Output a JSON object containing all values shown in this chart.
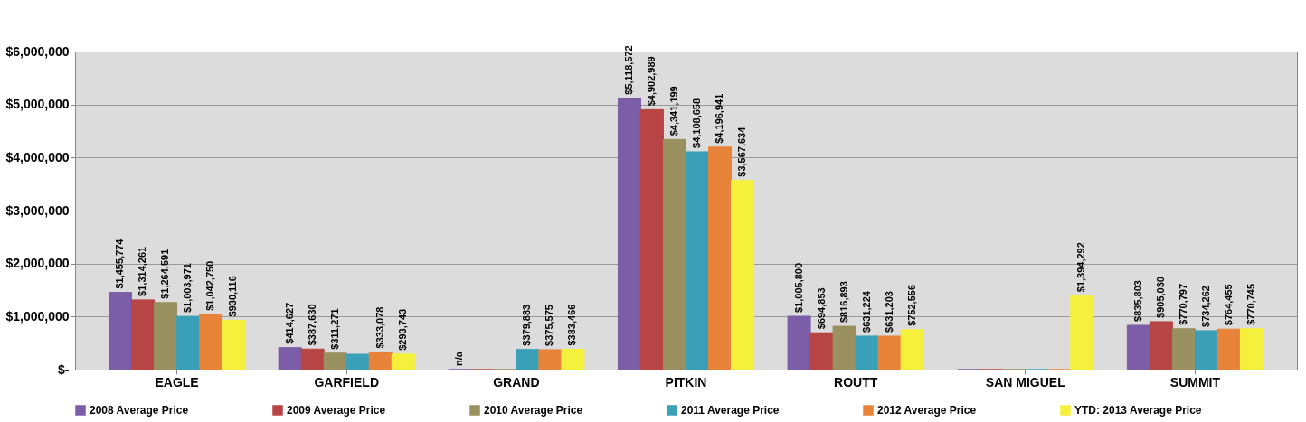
{
  "chart_data": {
    "type": "bar",
    "categories": [
      "EAGLE",
      "GARFIELD",
      "GRAND",
      "PITKIN",
      "ROUTT",
      "SAN MIGUEL",
      "SUMMIT"
    ],
    "series": [
      {
        "name": "2008 Average Price",
        "color": "#7b5ea7",
        "values": [
          1455774,
          414627,
          0,
          5118572,
          1005800,
          0,
          835803
        ],
        "value_labels": [
          "$1,455,774",
          "$414,627",
          "n/a",
          "$5,118,572",
          "$1,005,800",
          null,
          "$835,803"
        ]
      },
      {
        "name": "2009 Average Price",
        "color": "#b84545",
        "values": [
          1314261,
          387630,
          0,
          4902989,
          694853,
          0,
          905030
        ],
        "value_labels": [
          "$1,314,261",
          "$387,630",
          null,
          "$4,902,989",
          "$694,853",
          null,
          "$905,030"
        ]
      },
      {
        "name": "2010 Average Price",
        "color": "#9a9060",
        "values": [
          1264591,
          311271,
          0,
          4341199,
          816893,
          0,
          770797
        ],
        "value_labels": [
          "$1,264,591",
          "$311,271",
          null,
          "$4,341,199",
          "$816,893",
          null,
          "$770,797"
        ]
      },
      {
        "name": "2011 Average Price",
        "color": "#3aa0b8",
        "values": [
          1003971,
          290000,
          379883,
          4108658,
          631224,
          0,
          734262
        ],
        "value_labels": [
          "$1,003,971",
          null,
          "$379,883",
          "$4,108,658",
          "$631,224",
          null,
          "$734,262"
        ]
      },
      {
        "name": "2012 Average Price",
        "color": "#e8843a",
        "values": [
          1042750,
          333078,
          375575,
          4196941,
          631203,
          0,
          764455
        ],
        "value_labels": [
          "$1,042,750",
          "$333,078",
          "$375,575",
          "$4,196,941",
          "$631,203",
          null,
          "$764,455"
        ]
      },
      {
        "name": "YTD: 2013 Average Price",
        "color": "#f5f03c",
        "values": [
          930116,
          293743,
          383466,
          3567634,
          752556,
          1394292,
          770745
        ],
        "value_labels": [
          "$930,116",
          "$293,743",
          "$383,466",
          "$3,567,634",
          "$752,556",
          "$1,394,292",
          "$770,745"
        ]
      }
    ],
    "ylim": [
      0,
      6000000
    ],
    "yticks": [
      {
        "value": 0,
        "label": "$-"
      },
      {
        "value": 1000000,
        "label": "$1,000,000"
      },
      {
        "value": 2000000,
        "label": "$2,000,000"
      },
      {
        "value": 3000000,
        "label": "$3,000,000"
      },
      {
        "value": 4000000,
        "label": "$4,000,000"
      },
      {
        "value": 5000000,
        "label": "$5,000,000"
      },
      {
        "value": 6000000,
        "label": "$6,000,000"
      }
    ],
    "grid": "y",
    "legend": "bottom"
  }
}
